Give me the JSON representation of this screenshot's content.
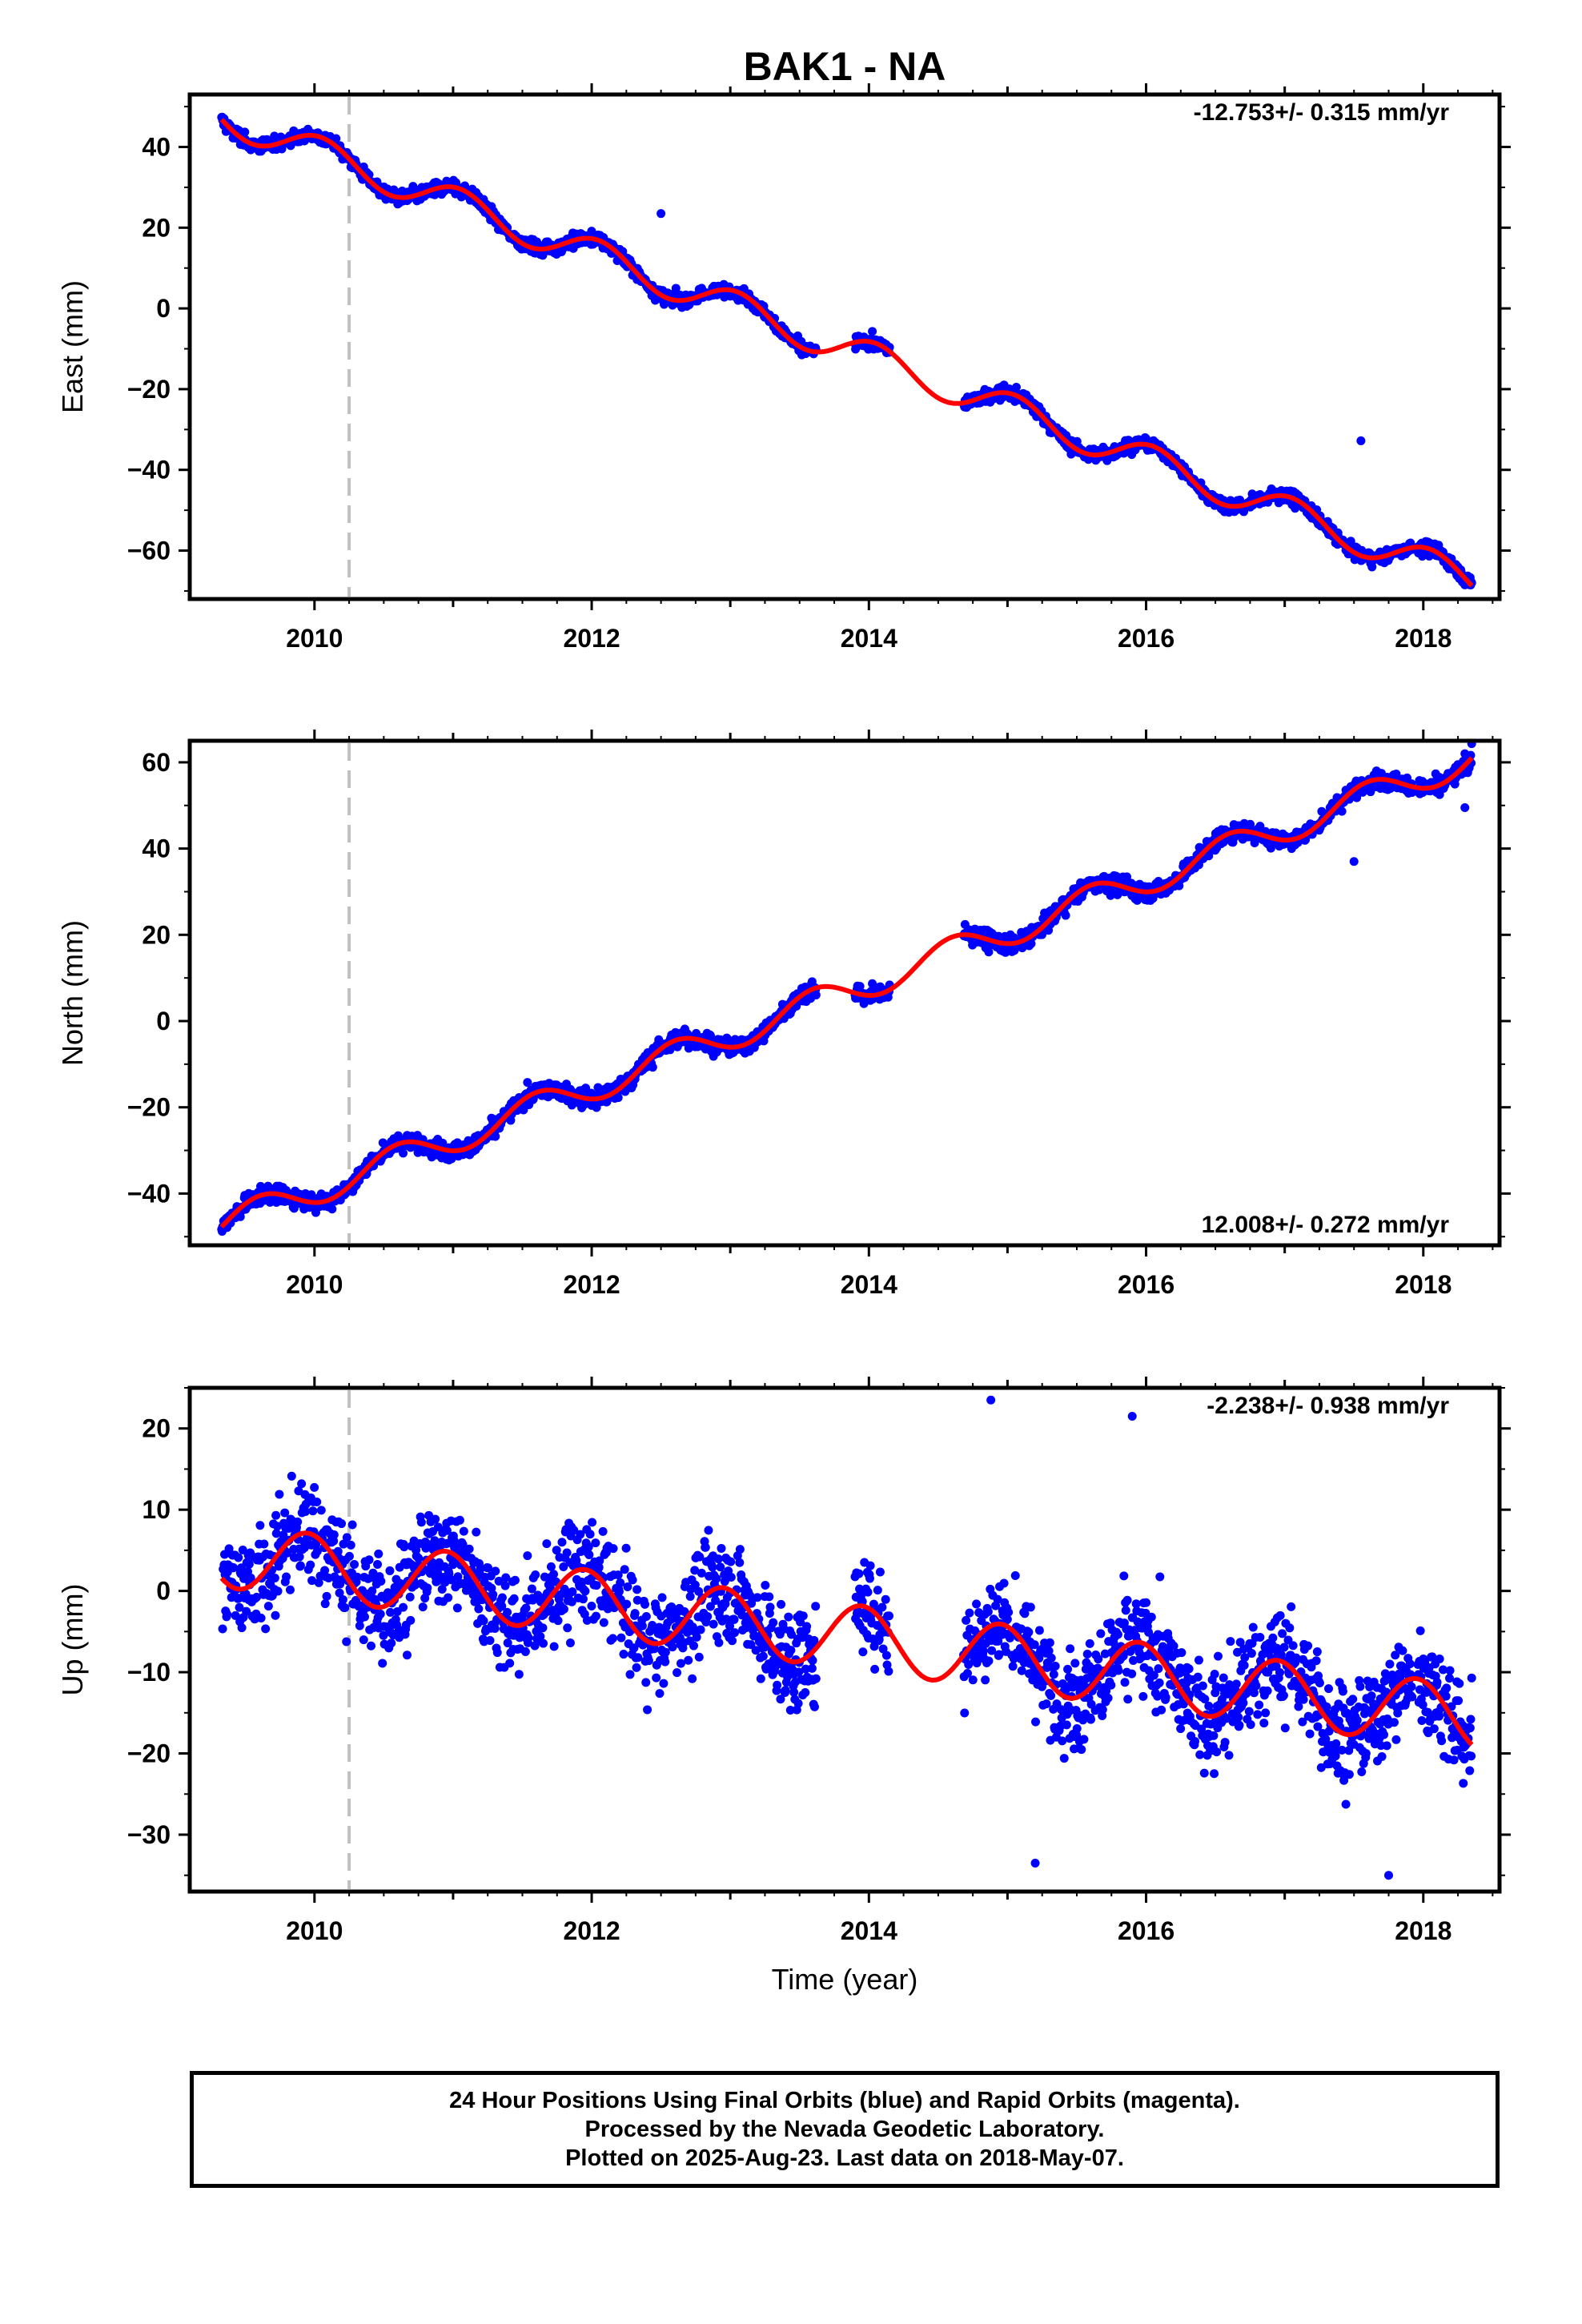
{
  "title": "BAK1 - NA",
  "xlabel": "Time (year)",
  "footer": {
    "line1": "24 Hour Positions Using Final Orbits (blue) and Rapid Orbits (magenta).",
    "line2": "Processed by the Nevada Geodetic Laboratory.",
    "line3": "Plotted on 2025-Aug-23. Last data on 2018-May-07."
  },
  "colors": {
    "data": "#0000ff",
    "model": "#ff0000",
    "event": "#c0c0c0",
    "axis": "#000000"
  },
  "chart_data": [
    {
      "type": "scatter",
      "name": "east",
      "ylabel": "East (mm)",
      "rate_label": "-12.753+/- 0.315 mm/yr",
      "rate_corner": "top-right",
      "xlim": [
        2009.1,
        2018.55
      ],
      "ylim": [
        -72,
        53
      ],
      "yticks": [
        40,
        20,
        0,
        -20,
        -40,
        -60
      ],
      "xticks": [
        2010,
        2012,
        2014,
        2016,
        2018
      ],
      "event_line_x": 2010.25,
      "model": {
        "intercept": 47.55,
        "slope": -12.753,
        "t0": 2009.33,
        "amplitude": 4.0,
        "phase_year": 2010.05,
        "x_start": 2009.33,
        "x_end": 2018.35
      },
      "noise": 1.2,
      "gaps": [
        [
          2013.62,
          2013.9
        ],
        [
          2014.15,
          2014.68
        ],
        [
          2017.92,
          2017.96
        ]
      ],
      "outliers": [
        {
          "x": 2012.5,
          "y": 23.5
        },
        {
          "x": 2017.55,
          "y": -32.8
        },
        {
          "x": 2018.3,
          "y": -68.5
        }
      ]
    },
    {
      "type": "scatter",
      "name": "north",
      "ylabel": "North (mm)",
      "rate_label": "12.008+/- 0.272 mm/yr",
      "rate_corner": "bottom-right",
      "xlim": [
        2009.1,
        2018.55
      ],
      "ylim": [
        -52,
        65
      ],
      "yticks": [
        60,
        40,
        20,
        0,
        -20,
        -40
      ],
      "xticks": [
        2010,
        2012,
        2014,
        2016,
        2018
      ],
      "event_line_x": 2010.25,
      "model": {
        "intercept": -47.3,
        "slope": 12.008,
        "t0": 2009.33,
        "amplitude": 3.5,
        "phase_year": 2009.6,
        "x_start": 2009.33,
        "x_end": 2018.35
      },
      "noise": 1.5,
      "gaps": [
        [
          2013.62,
          2013.9
        ],
        [
          2014.15,
          2014.68
        ],
        [
          2017.92,
          2017.96
        ]
      ],
      "outliers": [
        {
          "x": 2017.5,
          "y": 37
        },
        {
          "x": 2018.3,
          "y": 62
        },
        {
          "x": 2018.3,
          "y": 49.5
        }
      ]
    },
    {
      "type": "scatter",
      "name": "up",
      "ylabel": "Up (mm)",
      "rate_label": "-2.238+/- 0.938 mm/yr",
      "rate_corner": "top-right",
      "xlim": [
        2009.1,
        2018.55
      ],
      "ylim": [
        -37,
        25
      ],
      "yticks": [
        20,
        10,
        0,
        -10,
        -20,
        -30
      ],
      "xticks": [
        2010,
        2012,
        2014,
        2016,
        2018
      ],
      "event_line_x": 2010.25,
      "model": {
        "intercept": 4.5,
        "slope": -2.238,
        "t0": 2009.33,
        "amplitude": 4.0,
        "phase_year": 2009.95,
        "x_start": 2009.33,
        "x_end": 2018.35
      },
      "noise": 4.5,
      "gaps": [
        [
          2013.62,
          2013.9
        ],
        [
          2014.15,
          2014.68
        ],
        [
          2017.92,
          2017.96
        ]
      ],
      "outliers": [
        {
          "x": 2014.88,
          "y": 23.5
        },
        {
          "x": 2015.9,
          "y": 21.5
        },
        {
          "x": 2015.2,
          "y": -33.5
        },
        {
          "x": 2017.75,
          "y": -35
        }
      ]
    }
  ]
}
